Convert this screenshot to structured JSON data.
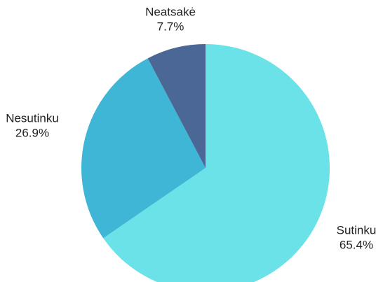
{
  "chart_data": {
    "type": "pie",
    "categories": [
      "Sutinku",
      "Nesutinku",
      "Neatsakė"
    ],
    "values": [
      65.4,
      26.9,
      7.7
    ],
    "value_labels": [
      "65.4%",
      "26.9%",
      "7.7%"
    ],
    "colors": [
      "#6ae2e7",
      "#3fb6d5",
      "#4b6795"
    ]
  }
}
